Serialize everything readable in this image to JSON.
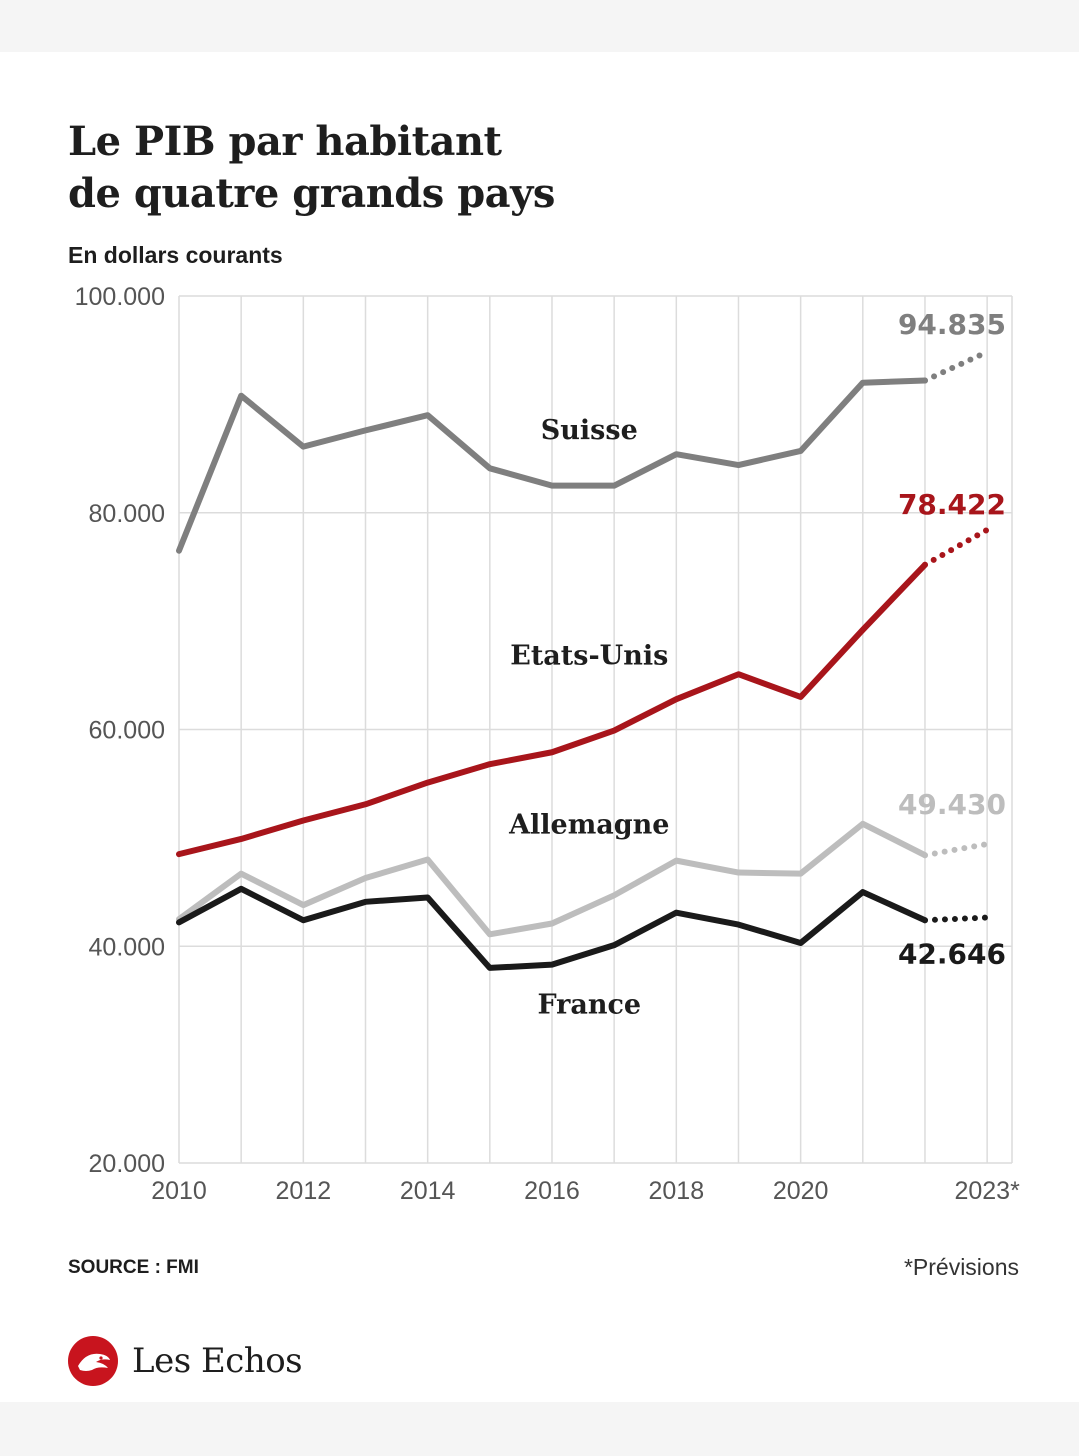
{
  "header": {
    "title_line1": "Le PIB par habitant",
    "title_line2": "de quatre grands pays",
    "subtitle": "En dollars courants"
  },
  "footer": {
    "source": "SOURCE : FMI",
    "note": "*Prévisions",
    "brand": "Les Echos"
  },
  "chart_data": {
    "type": "line",
    "x": [
      2010,
      2011,
      2012,
      2013,
      2014,
      2015,
      2016,
      2017,
      2018,
      2019,
      2020,
      2021,
      2022,
      2023
    ],
    "xticks": [
      2010,
      2012,
      2014,
      2016,
      2018,
      2020,
      2023
    ],
    "xtick_labels": [
      "2010",
      "2012",
      "2014",
      "2016",
      "2018",
      "2020",
      "2023*"
    ],
    "yticks": [
      20000,
      40000,
      60000,
      80000,
      100000
    ],
    "ytick_labels": [
      "20.000",
      "40.000",
      "60.000",
      "80.000",
      "100.000"
    ],
    "ylim": [
      20000,
      100000
    ],
    "xlim": [
      2010,
      2023.4
    ],
    "grid": true,
    "forecast_from": 2022,
    "series": [
      {
        "name": "Suisse",
        "color": "#7f7f7f",
        "values": [
          76500,
          90800,
          86100,
          87600,
          89000,
          84100,
          82500,
          82500,
          85400,
          84400,
          85700,
          92000,
          92200,
          94835
        ],
        "end_label": "94.835"
      },
      {
        "name": "Etats-Unis",
        "color": "#a8151b",
        "values": [
          48500,
          49900,
          51600,
          53100,
          55100,
          56800,
          57900,
          59900,
          62800,
          65100,
          63000,
          69200,
          75200,
          78422
        ],
        "end_label": "78.422"
      },
      {
        "name": "Allemagne",
        "color": "#bdbdbd",
        "values": [
          42500,
          46700,
          43800,
          46300,
          48000,
          41100,
          42100,
          44700,
          47900,
          46800,
          46700,
          51300,
          48400,
          49430
        ],
        "end_label": "49.430"
      },
      {
        "name": "France",
        "color": "#1a1a1a",
        "values": [
          42200,
          45300,
          42400,
          44100,
          44500,
          38000,
          38300,
          40100,
          43100,
          42000,
          40300,
          45000,
          42400,
          42646
        ],
        "end_label": "42.646"
      }
    ]
  }
}
